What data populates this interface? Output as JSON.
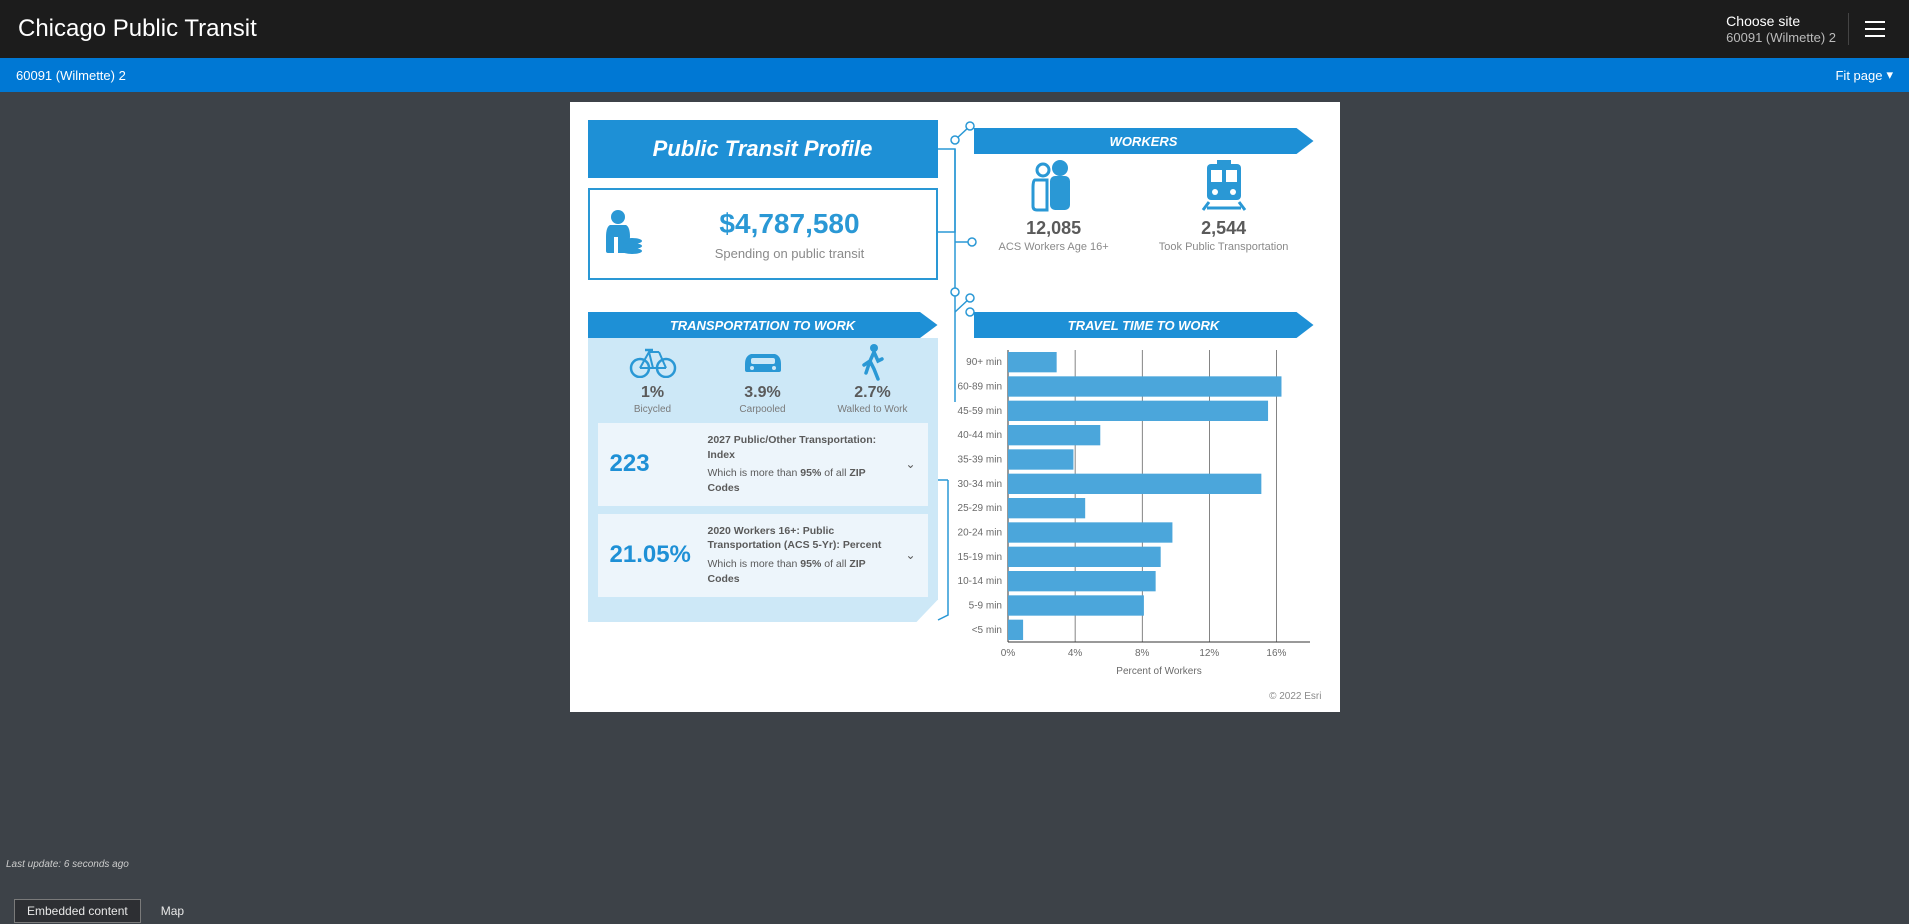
{
  "header": {
    "title": "Chicago Public Transit",
    "choose_site_label": "Choose site",
    "choose_site_value": "60091 (Wilmette) 2"
  },
  "bluebar": {
    "left": "60091 (Wilmette) 2",
    "right": "Fit page"
  },
  "status": {
    "last_update": "Last update: 6 seconds ago"
  },
  "tabs": {
    "embedded": "Embedded content",
    "map": "Map"
  },
  "infographic": {
    "title": "Public Transit Profile",
    "spending": {
      "amount": "$4,787,580",
      "sub": "Spending on public transit"
    },
    "workers": {
      "header": "WORKERS",
      "items": [
        {
          "value": "12,085",
          "label": "ACS Workers Age 16+"
        },
        {
          "value": "2,544",
          "label": "Took Public Transportation"
        }
      ]
    },
    "transport": {
      "header": "TRANSPORTATION TO WORK",
      "modes": [
        {
          "value": "1%",
          "label": "Bicycled"
        },
        {
          "value": "3.9%",
          "label": "Carpooled"
        },
        {
          "value": "2.7%",
          "label": "Walked to Work"
        }
      ],
      "cards": [
        {
          "big": "223",
          "title": "2027 Public/Other Transportation: Index",
          "sub_prefix": "Which is more than ",
          "sub_pct": "95%",
          "sub_suffix": " of all ",
          "sub_bold2": "ZIP Codes"
        },
        {
          "big": "21.05%",
          "title": "2020 Workers 16+: Public Transportation (ACS 5-Yr): Percent",
          "sub_prefix": "Which is more than ",
          "sub_pct": "95%",
          "sub_suffix": " of all ",
          "sub_bold2": "ZIP Codes"
        }
      ]
    },
    "chart": {
      "header": "TRAVEL TIME TO WORK",
      "x_title": "Percent of Workers",
      "x_ticks": [
        0,
        4,
        8,
        12,
        16
      ],
      "x_tick_labels": [
        "0%",
        "4%",
        "8%",
        "12%",
        "16%"
      ],
      "xlim": [
        0,
        18
      ],
      "rows": [
        {
          "label": "<5 min",
          "value": 0.9
        },
        {
          "label": "5-9 min",
          "value": 8.1
        },
        {
          "label": "10-14 min",
          "value": 8.8
        },
        {
          "label": "15-19 min",
          "value": 9.1
        },
        {
          "label": "20-24 min",
          "value": 9.8
        },
        {
          "label": "25-29 min",
          "value": 4.6
        },
        {
          "label": "30-34 min",
          "value": 15.1
        },
        {
          "label": "35-39 min",
          "value": 3.9
        },
        {
          "label": "40-44 min",
          "value": 5.5
        },
        {
          "label": "45-59 min",
          "value": 15.5
        },
        {
          "label": "60-89 min",
          "value": 16.3
        },
        {
          "label": "90+ min",
          "value": 2.9
        }
      ],
      "bar_color": "#4ba6db",
      "grid_color": "#333333",
      "bar_gap": 4
    },
    "copyright": "© 2022 Esri",
    "colors": {
      "primary": "#1e90d6",
      "primary_border": "#2a98d5",
      "light_panel": "#cde8f7",
      "card_bg": "#edf5fb",
      "icon": "#2a98d5"
    }
  }
}
